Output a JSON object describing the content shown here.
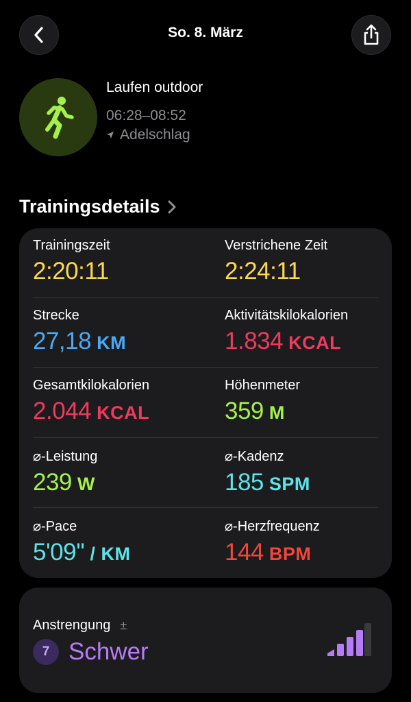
{
  "nav": {
    "title": "So. 8. März",
    "back_icon": "chevron-left-icon",
    "share_icon": "share-icon"
  },
  "workout": {
    "name": "Laufen outdoor",
    "time_range": "06:28–08:52",
    "location": "Adelschlag",
    "icon": "running-figure-icon",
    "accent_color": "#a4f14c"
  },
  "section": {
    "title": "Trainingsdetails"
  },
  "metrics": [
    {
      "label": "Trainingszeit",
      "value": "2:20:11",
      "unit": "",
      "color": "#ffd84a"
    },
    {
      "label": "Verstrichene Zeit",
      "value": "2:24:11",
      "unit": "",
      "color": "#ffd84a"
    },
    {
      "label": "Strecke",
      "value": "27,18",
      "unit": "KM",
      "color": "#4aa8f5"
    },
    {
      "label": "Aktivitätskilokalorien",
      "value": "1.834",
      "unit": "KCAL",
      "color": "#ef3a5d"
    },
    {
      "label": "Gesamtkilokalorien",
      "value": "2.044",
      "unit": "KCAL",
      "color": "#ef3a5d"
    },
    {
      "label": "Höhenmeter",
      "value": "359",
      "unit": "M",
      "color": "#a4f14c"
    },
    {
      "label": "⌀-Leistung",
      "value": "239",
      "unit": "W",
      "color": "#a4f14c"
    },
    {
      "label": "⌀-Kadenz",
      "value": "185",
      "unit": "SPM",
      "color": "#5ee3e8"
    },
    {
      "label": "⌀-Pace",
      "value": "5'09''",
      "unit": "/ KM",
      "color": "#5ee3e8"
    },
    {
      "label": "⌀-Herzfrequenz",
      "value": "144",
      "unit": "BPM",
      "color": "#f2463a"
    }
  ],
  "effort": {
    "label": "Anstrengung",
    "adjust_symbol": "±",
    "level": "7",
    "level_max": 10,
    "text": "Schwer",
    "color": "#b67cf7"
  }
}
